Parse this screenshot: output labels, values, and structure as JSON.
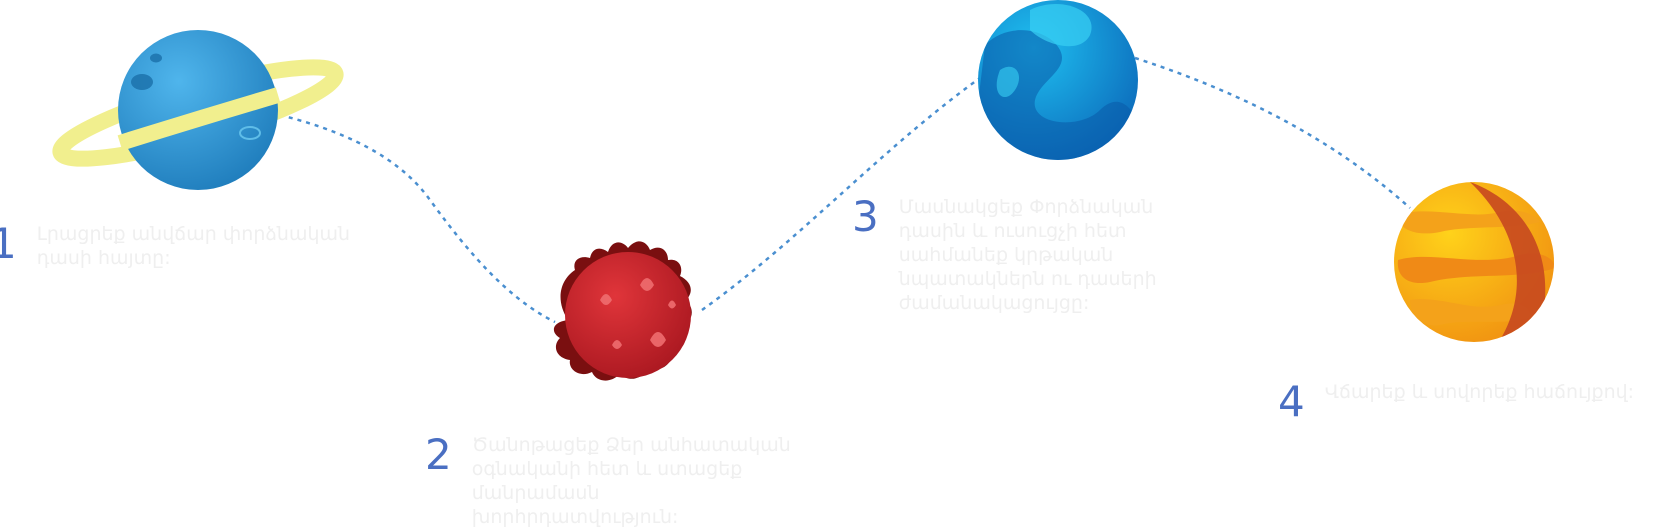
{
  "steps": [
    {
      "number": "1",
      "text": "Լրացրեք անվճար փորձնական\nդասի հայտը:"
    },
    {
      "number": "2",
      "text": "Ծանոթացեք Ձեր անհատական\nօգնականի հետ և ստացեք\nմանրամասն\nխորհրդատվություն:"
    },
    {
      "number": "3",
      "text": "Մասնակցեք Փորձնական\nդասին և ուսուցչի հետ\nսահմանեք կրթական\nնպատակներն ու դասերի\nժամանակացույցը:"
    },
    {
      "number": "4",
      "text": "Վճարեք և սովորեք հաճույքով:"
    }
  ],
  "icons": [
    "ringed-planet-icon",
    "fire-planet-icon",
    "blue-planet-icon",
    "orange-planet-icon"
  ],
  "colors": {
    "step_number": "#4a6fc2",
    "step_text": "#efefef",
    "dotted_path": "#4a8fd0"
  }
}
